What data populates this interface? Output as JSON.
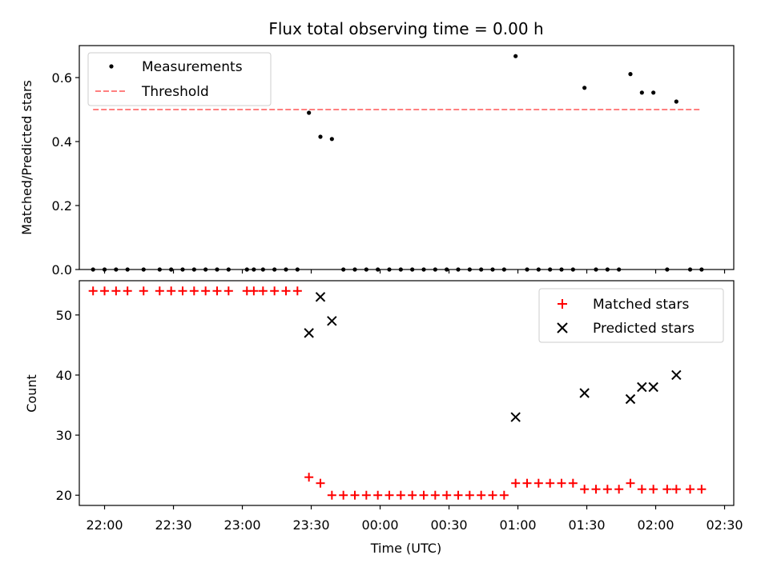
{
  "chart_data": [
    {
      "type": "scatter",
      "title": "Flux total observing time = 0.00 h",
      "xlabel": "",
      "ylabel": "Matched/Predicted stars",
      "xlim": [
        "21:49",
        "02:34"
      ],
      "ylim": [
        0.0,
        0.7
      ],
      "yticks": [
        "0.0",
        "0.2",
        "0.4",
        "0.6"
      ],
      "grid": false,
      "legend_position": "top-left",
      "series": [
        {
          "name": "Measurements",
          "kind": "scatter",
          "color": "#000000",
          "points": [
            {
              "x": "21:55",
              "y": 0.0
            },
            {
              "x": "22:00",
              "y": 0.0
            },
            {
              "x": "22:05",
              "y": 0.0
            },
            {
              "x": "22:10",
              "y": 0.0
            },
            {
              "x": "22:17",
              "y": 0.0
            },
            {
              "x": "22:24",
              "y": 0.0
            },
            {
              "x": "22:29",
              "y": 0.0
            },
            {
              "x": "22:34",
              "y": 0.0
            },
            {
              "x": "22:39",
              "y": 0.0
            },
            {
              "x": "22:44",
              "y": 0.0
            },
            {
              "x": "22:49",
              "y": 0.0
            },
            {
              "x": "22:54",
              "y": 0.0
            },
            {
              "x": "23:02",
              "y": 0.0
            },
            {
              "x": "23:05",
              "y": 0.0
            },
            {
              "x": "23:09",
              "y": 0.0
            },
            {
              "x": "23:14",
              "y": 0.0
            },
            {
              "x": "23:19",
              "y": 0.0
            },
            {
              "x": "23:24",
              "y": 0.0
            },
            {
              "x": "23:29",
              "y": 0.49
            },
            {
              "x": "23:34",
              "y": 0.415
            },
            {
              "x": "23:39",
              "y": 0.408
            },
            {
              "x": "23:44",
              "y": 0.0
            },
            {
              "x": "23:49",
              "y": 0.0
            },
            {
              "x": "23:54",
              "y": 0.0
            },
            {
              "x": "23:59",
              "y": 0.0
            },
            {
              "x": "00:04",
              "y": 0.0
            },
            {
              "x": "00:09",
              "y": 0.0
            },
            {
              "x": "00:14",
              "y": 0.0
            },
            {
              "x": "00:19",
              "y": 0.0
            },
            {
              "x": "00:24",
              "y": 0.0
            },
            {
              "x": "00:29",
              "y": 0.0
            },
            {
              "x": "00:34",
              "y": 0.0
            },
            {
              "x": "00:39",
              "y": 0.0
            },
            {
              "x": "00:44",
              "y": 0.0
            },
            {
              "x": "00:49",
              "y": 0.0
            },
            {
              "x": "00:54",
              "y": 0.0
            },
            {
              "x": "00:59",
              "y": 0.667
            },
            {
              "x": "01:04",
              "y": 0.0
            },
            {
              "x": "01:09",
              "y": 0.0
            },
            {
              "x": "01:14",
              "y": 0.0
            },
            {
              "x": "01:19",
              "y": 0.0
            },
            {
              "x": "01:24",
              "y": 0.0
            },
            {
              "x": "01:29",
              "y": 0.568
            },
            {
              "x": "01:34",
              "y": 0.0
            },
            {
              "x": "01:39",
              "y": 0.0
            },
            {
              "x": "01:44",
              "y": 0.0
            },
            {
              "x": "01:49",
              "y": 0.611
            },
            {
              "x": "01:54",
              "y": 0.553
            },
            {
              "x": "01:59",
              "y": 0.553
            },
            {
              "x": "02:05",
              "y": 0.0
            },
            {
              "x": "02:09",
              "y": 0.525
            },
            {
              "x": "02:15",
              "y": 0.0
            },
            {
              "x": "02:20",
              "y": 0.0
            }
          ]
        },
        {
          "name": "Threshold",
          "kind": "dashed-line",
          "color": "#ff8080",
          "points": [
            {
              "x": "21:55",
              "y": 0.5
            },
            {
              "x": "02:20",
              "y": 0.5
            }
          ]
        }
      ]
    },
    {
      "type": "scatter",
      "title": "",
      "xlabel": "Time (UTC)",
      "ylabel": "Count",
      "xlim": [
        "21:49",
        "02:34"
      ],
      "ylim": [
        18.3,
        55.7
      ],
      "yticks": [
        "20",
        "30",
        "40",
        "50"
      ],
      "xticks": [
        "22:00",
        "22:30",
        "23:00",
        "23:30",
        "00:00",
        "00:30",
        "01:00",
        "01:30",
        "02:00",
        "02:30"
      ],
      "grid": false,
      "legend_position": "top-right",
      "series": [
        {
          "name": "Matched stars",
          "kind": "plus-marker",
          "color": "#ff0000",
          "points": [
            {
              "x": "21:55",
              "y": 54
            },
            {
              "x": "22:00",
              "y": 54
            },
            {
              "x": "22:05",
              "y": 54
            },
            {
              "x": "22:10",
              "y": 54
            },
            {
              "x": "22:17",
              "y": 54
            },
            {
              "x": "22:24",
              "y": 54
            },
            {
              "x": "22:29",
              "y": 54
            },
            {
              "x": "22:34",
              "y": 54
            },
            {
              "x": "22:39",
              "y": 54
            },
            {
              "x": "22:44",
              "y": 54
            },
            {
              "x": "22:49",
              "y": 54
            },
            {
              "x": "22:54",
              "y": 54
            },
            {
              "x": "23:02",
              "y": 54
            },
            {
              "x": "23:05",
              "y": 54
            },
            {
              "x": "23:09",
              "y": 54
            },
            {
              "x": "23:14",
              "y": 54
            },
            {
              "x": "23:19",
              "y": 54
            },
            {
              "x": "23:24",
              "y": 54
            },
            {
              "x": "23:29",
              "y": 23
            },
            {
              "x": "23:34",
              "y": 22
            },
            {
              "x": "23:39",
              "y": 20
            },
            {
              "x": "23:44",
              "y": 20
            },
            {
              "x": "23:49",
              "y": 20
            },
            {
              "x": "23:54",
              "y": 20
            },
            {
              "x": "23:59",
              "y": 20
            },
            {
              "x": "00:04",
              "y": 20
            },
            {
              "x": "00:09",
              "y": 20
            },
            {
              "x": "00:14",
              "y": 20
            },
            {
              "x": "00:19",
              "y": 20
            },
            {
              "x": "00:24",
              "y": 20
            },
            {
              "x": "00:29",
              "y": 20
            },
            {
              "x": "00:34",
              "y": 20
            },
            {
              "x": "00:39",
              "y": 20
            },
            {
              "x": "00:44",
              "y": 20
            },
            {
              "x": "00:49",
              "y": 20
            },
            {
              "x": "00:54",
              "y": 20
            },
            {
              "x": "00:59",
              "y": 22
            },
            {
              "x": "01:04",
              "y": 22
            },
            {
              "x": "01:09",
              "y": 22
            },
            {
              "x": "01:14",
              "y": 22
            },
            {
              "x": "01:19",
              "y": 22
            },
            {
              "x": "01:24",
              "y": 22
            },
            {
              "x": "01:29",
              "y": 21
            },
            {
              "x": "01:34",
              "y": 21
            },
            {
              "x": "01:39",
              "y": 21
            },
            {
              "x": "01:44",
              "y": 21
            },
            {
              "x": "01:49",
              "y": 22
            },
            {
              "x": "01:54",
              "y": 21
            },
            {
              "x": "01:59",
              "y": 21
            },
            {
              "x": "02:05",
              "y": 21
            },
            {
              "x": "02:09",
              "y": 21
            },
            {
              "x": "02:15",
              "y": 21
            },
            {
              "x": "02:20",
              "y": 21
            }
          ]
        },
        {
          "name": "Predicted stars",
          "kind": "x-marker",
          "color": "#000000",
          "points": [
            {
              "x": "23:29",
              "y": 47
            },
            {
              "x": "23:34",
              "y": 53
            },
            {
              "x": "23:39",
              "y": 49
            },
            {
              "x": "00:59",
              "y": 33
            },
            {
              "x": "01:29",
              "y": 37
            },
            {
              "x": "01:49",
              "y": 36
            },
            {
              "x": "01:54",
              "y": 38
            },
            {
              "x": "01:59",
              "y": 38
            },
            {
              "x": "02:09",
              "y": 40
            }
          ]
        }
      ]
    }
  ]
}
